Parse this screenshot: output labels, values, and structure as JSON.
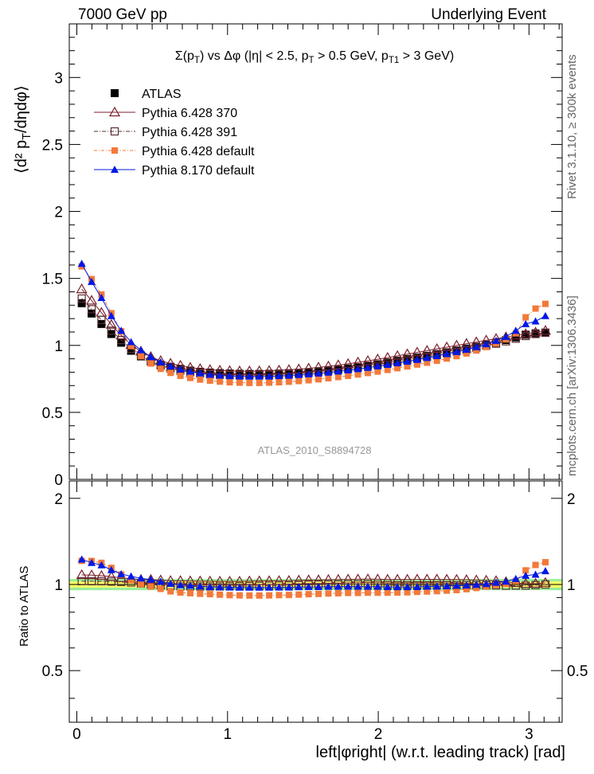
{
  "header": {
    "left": "7000 GeV pp",
    "right": "Underlying Event"
  },
  "side_labels": {
    "rivet": "Rivet 3.1.10, ≥ 300k events",
    "mcplots": "mcplots.cern.ch [arXiv:1306.3436]"
  },
  "analysis_id": "ATLAS_2010_S8894728",
  "colors": {
    "atlas": "#000000",
    "py6_370": "#7a1f2b",
    "py6_391": "#5a2f33",
    "py6_default": "#f27a3a",
    "py8_default": "#0018e6",
    "band_inner": "#ffff66",
    "band_outer": "#99ee99"
  },
  "chart_data": [
    {
      "type": "scatter",
      "panel": "main",
      "title": "Σ(p_T) vs Δφ (|η| < 2.5, p_T > 0.5 GeV, p_T1 > 3 GeV)",
      "ylabel": "⟨d² p_T/dηdφ⟩",
      "xlim": [
        -0.05,
        3.22
      ],
      "ylim": [
        0,
        3.4
      ],
      "y_ticks": [
        "0",
        "0.5",
        "1",
        "1.5",
        "2",
        "2.5",
        "3"
      ],
      "legend_position": "top-left",
      "x": [
        0.0327,
        0.0982,
        0.1636,
        0.2291,
        0.2945,
        0.36,
        0.4254,
        0.4909,
        0.5563,
        0.6218,
        0.6872,
        0.7527,
        0.8181,
        0.8836,
        0.949,
        1.0145,
        1.0799,
        1.1454,
        1.2108,
        1.2763,
        1.3417,
        1.4072,
        1.4726,
        1.5381,
        1.6035,
        1.669,
        1.7344,
        1.7999,
        1.8653,
        1.9308,
        1.9962,
        2.0617,
        2.1271,
        2.1926,
        2.258,
        2.3235,
        2.3889,
        2.4544,
        2.5198,
        2.5853,
        2.6507,
        2.7162,
        2.7816,
        2.8471,
        2.9125,
        2.978,
        3.0434,
        3.1089
      ],
      "series": [
        {
          "name": "ATLAS",
          "marker": "filled-square",
          "values": [
            1.315,
            1.238,
            1.16,
            1.085,
            1.02,
            0.96,
            0.918,
            0.88,
            0.855,
            0.84,
            0.825,
            0.812,
            0.803,
            0.797,
            0.793,
            0.79,
            0.788,
            0.787,
            0.787,
            0.788,
            0.79,
            0.793,
            0.796,
            0.8,
            0.806,
            0.812,
            0.82,
            0.828,
            0.838,
            0.848,
            0.86,
            0.873,
            0.886,
            0.898,
            0.91,
            0.922,
            0.935,
            0.948,
            0.962,
            0.976,
            0.99,
            1.005,
            1.02,
            1.04,
            1.06,
            1.08,
            1.09,
            1.095
          ]
        },
        {
          "name": "Pythia 6.428 370",
          "marker": "open-triangle",
          "values": [
            1.42,
            1.335,
            1.245,
            1.155,
            1.075,
            1.005,
            0.955,
            0.915,
            0.885,
            0.865,
            0.85,
            0.835,
            0.825,
            0.818,
            0.813,
            0.81,
            0.808,
            0.808,
            0.809,
            0.811,
            0.814,
            0.818,
            0.823,
            0.829,
            0.836,
            0.844,
            0.853,
            0.863,
            0.874,
            0.885,
            0.897,
            0.909,
            0.922,
            0.935,
            0.948,
            0.961,
            0.974,
            0.987,
            1.0,
            1.013,
            1.025,
            1.038,
            1.05,
            1.062,
            1.074,
            1.086,
            1.098,
            1.11
          ]
        },
        {
          "name": "Pythia 6.428 391",
          "marker": "open-square",
          "values": [
            1.35,
            1.27,
            1.19,
            1.11,
            1.04,
            0.975,
            0.925,
            0.88,
            0.85,
            0.828,
            0.812,
            0.8,
            0.79,
            0.784,
            0.78,
            0.778,
            0.777,
            0.777,
            0.778,
            0.78,
            0.783,
            0.787,
            0.792,
            0.798,
            0.805,
            0.812,
            0.82,
            0.829,
            0.838,
            0.848,
            0.858,
            0.869,
            0.88,
            0.892,
            0.904,
            0.916,
            0.929,
            0.942,
            0.955,
            0.969,
            0.983,
            0.998,
            1.013,
            1.03,
            1.05,
            1.07,
            1.085,
            1.095
          ]
        },
        {
          "name": "Pythia 6.428 default",
          "marker": "filled-square-small",
          "values": [
            1.59,
            1.495,
            1.38,
            1.24,
            1.105,
            0.995,
            0.92,
            0.865,
            0.825,
            0.795,
            0.773,
            0.757,
            0.745,
            0.737,
            0.73,
            0.725,
            0.722,
            0.72,
            0.72,
            0.722,
            0.725,
            0.729,
            0.734,
            0.74,
            0.747,
            0.755,
            0.764,
            0.773,
            0.783,
            0.794,
            0.805,
            0.817,
            0.83,
            0.843,
            0.857,
            0.871,
            0.886,
            0.902,
            0.92,
            0.94,
            0.962,
            0.988,
            1.015,
            1.045,
            1.09,
            1.21,
            1.275,
            1.31
          ]
        },
        {
          "name": "Pythia 8.170 default",
          "marker": "filled-triangle",
          "values": [
            1.61,
            1.475,
            1.355,
            1.22,
            1.11,
            1.025,
            0.965,
            0.915,
            0.875,
            0.845,
            0.822,
            0.805,
            0.792,
            0.782,
            0.776,
            0.772,
            0.769,
            0.768,
            0.768,
            0.769,
            0.772,
            0.775,
            0.78,
            0.785,
            0.791,
            0.798,
            0.806,
            0.815,
            0.824,
            0.834,
            0.845,
            0.856,
            0.868,
            0.88,
            0.893,
            0.907,
            0.921,
            0.936,
            0.952,
            0.969,
            0.988,
            1.01,
            1.035,
            1.065,
            1.11,
            1.16,
            1.18,
            1.22
          ]
        }
      ]
    },
    {
      "type": "scatter",
      "panel": "ratio",
      "ylabel": "Ratio to ATLAS",
      "xlabel": "left|φright| (w.r.t. leading track) [rad]",
      "xlim": [
        -0.05,
        3.22
      ],
      "ylim": [
        0.33,
        2.3
      ],
      "x_ticks": [
        "0",
        "1",
        "2",
        "3"
      ],
      "y_ticks": [
        "0.5",
        "1",
        "2"
      ],
      "band_inner": [
        0.975,
        1.025
      ],
      "band_outer": [
        0.955,
        1.045
      ],
      "series": [
        {
          "name": "Pythia 6.428 370",
          "values": [
            1.08,
            1.078,
            1.073,
            1.065,
            1.054,
            1.047,
            1.04,
            1.04,
            1.035,
            1.03,
            1.03,
            1.028,
            1.027,
            1.026,
            1.025,
            1.025,
            1.025,
            1.027,
            1.028,
            1.029,
            1.03,
            1.031,
            1.034,
            1.036,
            1.037,
            1.039,
            1.04,
            1.042,
            1.043,
            1.044,
            1.043,
            1.041,
            1.041,
            1.041,
            1.042,
            1.042,
            1.042,
            1.041,
            1.04,
            1.038,
            1.035,
            1.033,
            1.029,
            1.021,
            1.013,
            1.006,
            1.007,
            1.014
          ]
        },
        {
          "name": "Pythia 6.428 391",
          "values": [
            1.027,
            1.026,
            1.026,
            1.023,
            1.02,
            1.016,
            1.008,
            1.0,
            0.994,
            0.986,
            0.984,
            0.985,
            0.984,
            0.984,
            0.984,
            0.985,
            0.986,
            0.987,
            0.989,
            0.99,
            0.991,
            0.992,
            0.995,
            0.998,
            0.999,
            1.0,
            1.0,
            1.001,
            1.0,
            1.0,
            0.998,
            0.995,
            0.993,
            0.993,
            0.993,
            0.993,
            0.994,
            0.994,
            0.993,
            0.993,
            0.993,
            0.993,
            0.993,
            0.99,
            0.991,
            0.991,
            0.995,
            1.0
          ]
        },
        {
          "name": "Pythia 6.428 default",
          "values": [
            1.209,
            1.208,
            1.19,
            1.143,
            1.083,
            1.036,
            1.002,
            0.983,
            0.965,
            0.946,
            0.937,
            0.932,
            0.928,
            0.925,
            0.921,
            0.918,
            0.916,
            0.915,
            0.915,
            0.916,
            0.918,
            0.919,
            0.922,
            0.925,
            0.927,
            0.93,
            0.932,
            0.934,
            0.934,
            0.936,
            0.936,
            0.936,
            0.937,
            0.939,
            0.942,
            0.945,
            0.948,
            0.952,
            0.956,
            0.963,
            0.972,
            0.983,
            0.995,
            1.005,
            1.028,
            1.12,
            1.17,
            1.196
          ]
        },
        {
          "name": "Pythia 8.170 default",
          "values": [
            1.224,
            1.191,
            1.168,
            1.124,
            1.088,
            1.068,
            1.051,
            1.04,
            1.023,
            1.006,
            0.996,
            0.991,
            0.986,
            0.981,
            0.979,
            0.977,
            0.976,
            0.976,
            0.976,
            0.976,
            0.977,
            0.977,
            0.98,
            0.981,
            0.981,
            0.983,
            0.983,
            0.984,
            0.983,
            0.983,
            0.983,
            0.981,
            0.98,
            0.98,
            0.981,
            0.984,
            0.985,
            0.987,
            0.99,
            0.993,
            0.998,
            1.005,
            1.015,
            1.024,
            1.047,
            1.074,
            1.083,
            1.114
          ]
        }
      ]
    }
  ]
}
